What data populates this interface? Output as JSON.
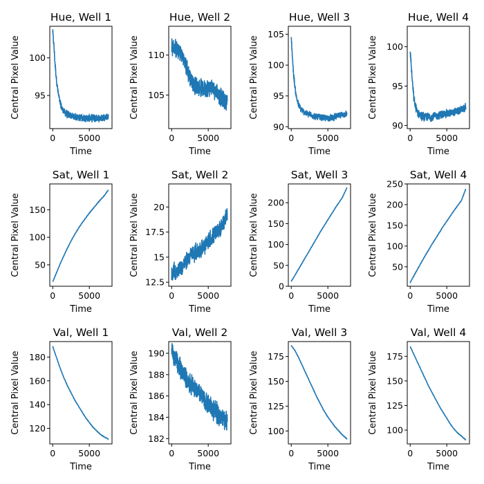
{
  "chart_data": [
    {
      "type": "line",
      "title": "Hue, Well 1",
      "xlabel": "Time",
      "ylabel": "Central Pixel Value",
      "xlim": [
        -400,
        8100
      ],
      "ylim": [
        90.6,
        104.2
      ],
      "xticks": [
        0,
        5000
      ],
      "yticks": [
        95,
        100
      ],
      "color": "#1f77b4",
      "noise": 0.55,
      "series": [
        {
          "x": [
            0,
            150,
            300,
            500,
            700,
            1000,
            1300,
            1600,
            2000,
            2500,
            3000,
            3500,
            4000,
            4500,
            5000,
            5500,
            6000,
            6500,
            7000,
            7600
          ],
          "y": [
            103.5,
            101.8,
            99.5,
            97.2,
            95.6,
            94.0,
            93.2,
            92.8,
            92.5,
            92.3,
            92.2,
            92.1,
            92.0,
            92.0,
            92.0,
            92.0,
            92.0,
            92.0,
            92.1,
            92.2
          ]
        }
      ]
    },
    {
      "type": "line",
      "title": "Hue, Well 2",
      "xlabel": "Time",
      "ylabel": "Central Pixel Value",
      "xlim": [
        -400,
        8100
      ],
      "ylim": [
        100.8,
        113.6
      ],
      "xticks": [
        0,
        5000
      ],
      "yticks": [
        105,
        110
      ],
      "color": "#1f77b4",
      "noise": 1.3,
      "series": [
        {
          "x": [
            0,
            500,
            1000,
            1500,
            2000,
            2500,
            3000,
            3500,
            4000,
            4500,
            5000,
            5500,
            6000,
            6500,
            7000,
            7600
          ],
          "y": [
            111.0,
            110.8,
            110.5,
            109.8,
            108.5,
            107.2,
            106.4,
            106.0,
            105.9,
            105.8,
            105.9,
            105.9,
            105.6,
            105.0,
            104.4,
            104.0
          ]
        }
      ]
    },
    {
      "type": "line",
      "title": "Hue, Well 3",
      "xlabel": "Time",
      "ylabel": "Central Pixel Value",
      "xlim": [
        -400,
        8100
      ],
      "ylim": [
        89.7,
        106.3
      ],
      "xticks": [
        0,
        5000
      ],
      "yticks": [
        90,
        95,
        100,
        105
      ],
      "color": "#1f77b4",
      "noise": 0.6,
      "series": [
        {
          "x": [
            0,
            150,
            300,
            500,
            700,
            1000,
            1300,
            1600,
            2000,
            2500,
            3000,
            3500,
            4000,
            4500,
            5000,
            5500,
            6000,
            6500,
            7000,
            7600
          ],
          "y": [
            104.5,
            101.5,
            98.8,
            96.5,
            94.8,
            93.5,
            92.9,
            92.5,
            92.2,
            92.0,
            91.8,
            91.6,
            91.5,
            91.4,
            91.4,
            91.5,
            91.6,
            91.8,
            92.0,
            92.1
          ]
        }
      ]
    },
    {
      "type": "line",
      "title": "Hue, Well 4",
      "xlabel": "Time",
      "ylabel": "Central Pixel Value",
      "xlim": [
        -400,
        8100
      ],
      "ylim": [
        89.6,
        102.6
      ],
      "xticks": [
        0,
        5000
      ],
      "yticks": [
        90,
        95,
        100
      ],
      "color": "#1f77b4",
      "noise": 0.6,
      "series": [
        {
          "x": [
            0,
            150,
            300,
            500,
            700,
            1000,
            1300,
            1600,
            2000,
            2500,
            3000,
            3500,
            4000,
            4500,
            5000,
            5500,
            6000,
            6500,
            7000,
            7600
          ],
          "y": [
            99.5,
            97.5,
            95.5,
            93.5,
            92.4,
            91.7,
            91.4,
            91.2,
            91.1,
            91.1,
            91.1,
            91.2,
            91.3,
            91.4,
            91.5,
            91.6,
            91.7,
            91.8,
            92.0,
            92.3
          ]
        }
      ]
    },
    {
      "type": "line",
      "title": "Sat, Well 1",
      "xlabel": "Time",
      "ylabel": "Central Pixel Value",
      "xlim": [
        -400,
        8100
      ],
      "ylim": [
        11,
        197
      ],
      "xticks": [
        0,
        5000
      ],
      "yticks": [
        50,
        100,
        150
      ],
      "color": "#1f77b4",
      "noise": 0.8,
      "series": [
        {
          "x": [
            0,
            500,
            1000,
            1500,
            2000,
            2500,
            3000,
            3500,
            4000,
            4500,
            5000,
            5500,
            6000,
            6500,
            7000,
            7600
          ],
          "y": [
            19,
            35,
            51,
            66,
            80,
            93,
            105,
            116,
            126,
            135,
            144,
            152,
            160,
            168,
            175,
            186
          ]
        }
      ]
    },
    {
      "type": "line",
      "title": "Sat, Well 2",
      "xlabel": "Time",
      "ylabel": "Central Pixel Value",
      "xlim": [
        -400,
        8100
      ],
      "ylim": [
        12.1,
        22.3
      ],
      "xticks": [
        0,
        5000
      ],
      "yticks": [
        12.5,
        15.0,
        17.5,
        20.0
      ],
      "color": "#1f77b4",
      "noise": 1.0,
      "series": [
        {
          "x": [
            0,
            500,
            1000,
            1500,
            2000,
            2500,
            3000,
            3500,
            4000,
            4500,
            5000,
            5500,
            6000,
            6500,
            7000,
            7600
          ],
          "y": [
            13.5,
            13.6,
            13.8,
            14.1,
            14.6,
            15.1,
            15.4,
            15.6,
            15.8,
            16.1,
            16.5,
            17.0,
            17.4,
            17.8,
            18.3,
            19.3
          ]
        }
      ]
    },
    {
      "type": "line",
      "title": "Sat, Well 3",
      "xlabel": "Time",
      "ylabel": "Central Pixel Value",
      "xlim": [
        -400,
        8100
      ],
      "ylim": [
        0,
        245
      ],
      "xticks": [
        0,
        5000
      ],
      "yticks": [
        0,
        50,
        100,
        150,
        200
      ],
      "color": "#1f77b4",
      "noise": 0.9,
      "series": [
        {
          "x": [
            0,
            500,
            1000,
            1500,
            2000,
            2500,
            3000,
            3500,
            4000,
            4500,
            5000,
            5500,
            6000,
            6500,
            7000,
            7600
          ],
          "y": [
            12,
            26,
            41,
            56,
            71,
            86,
            101,
            116,
            131,
            145,
            159,
            173,
            187,
            200,
            213,
            236
          ]
        }
      ]
    },
    {
      "type": "line",
      "title": "Sat, Well 4",
      "xlabel": "Time",
      "ylabel": "Central Pixel Value",
      "xlim": [
        -400,
        8100
      ],
      "ylim": [
        3,
        250
      ],
      "xticks": [
        0,
        5000
      ],
      "yticks": [
        50,
        100,
        150,
        200,
        250
      ],
      "color": "#1f77b4",
      "noise": 1.0,
      "series": [
        {
          "x": [
            0,
            500,
            1000,
            1500,
            2000,
            2500,
            3000,
            3500,
            4000,
            4500,
            5000,
            5500,
            6000,
            6500,
            7000,
            7600
          ],
          "y": [
            12,
            28,
            44,
            60,
            75,
            90,
            105,
            119,
            133,
            147,
            160,
            173,
            186,
            198,
            210,
            238
          ]
        }
      ]
    },
    {
      "type": "line",
      "title": "Val, Well 1",
      "xlabel": "Time",
      "ylabel": "Central Pixel Value",
      "xlim": [
        -400,
        8100
      ],
      "ylim": [
        107,
        193
      ],
      "xticks": [
        0,
        5000
      ],
      "yticks": [
        120,
        140,
        160,
        180
      ],
      "color": "#1f77b4",
      "noise": 0.35,
      "series": [
        {
          "x": [
            0,
            500,
            1000,
            1500,
            2000,
            2500,
            3000,
            3500,
            4000,
            4500,
            5000,
            5500,
            6000,
            6500,
            7000,
            7600
          ],
          "y": [
            189,
            180,
            171,
            163,
            156,
            150,
            144,
            139,
            134,
            129,
            125,
            121,
            118,
            115,
            113,
            111
          ]
        }
      ]
    },
    {
      "type": "line",
      "title": "Val, Well 2",
      "xlabel": "Time",
      "ylabel": "Central Pixel Value",
      "xlim": [
        -400,
        8100
      ],
      "ylim": [
        181.5,
        191.1
      ],
      "xticks": [
        0,
        5000
      ],
      "yticks": [
        182,
        184,
        186,
        188,
        190
      ],
      "color": "#1f77b4",
      "noise": 1.1,
      "series": [
        {
          "x": [
            0,
            500,
            1000,
            1500,
            2000,
            2500,
            3000,
            3500,
            4000,
            4500,
            5000,
            5500,
            6000,
            6500,
            7000,
            7600
          ],
          "y": [
            190.0,
            189.4,
            188.8,
            188.2,
            187.7,
            187.2,
            186.8,
            186.4,
            186.0,
            185.6,
            185.2,
            184.8,
            184.5,
            184.2,
            183.9,
            183.6
          ]
        }
      ]
    },
    {
      "type": "line",
      "title": "Val, Well 3",
      "xlabel": "Time",
      "ylabel": "Central Pixel Value",
      "xlim": [
        -400,
        8100
      ],
      "ylim": [
        87,
        190
      ],
      "xticks": [
        0,
        5000
      ],
      "yticks": [
        100,
        125,
        150,
        175
      ],
      "color": "#1f77b4",
      "noise": 0.4,
      "series": [
        {
          "x": [
            0,
            500,
            1000,
            1500,
            2000,
            2500,
            3000,
            3500,
            4000,
            4500,
            5000,
            5500,
            6000,
            6500,
            7000,
            7600
          ],
          "y": [
            186,
            181,
            174,
            166,
            158,
            150,
            142,
            134,
            127,
            120,
            114,
            109,
            104,
            100,
            96,
            92
          ]
        }
      ]
    },
    {
      "type": "line",
      "title": "Val, Well 4",
      "xlabel": "Time",
      "ylabel": "Central Pixel Value",
      "xlim": [
        -400,
        8100
      ],
      "ylim": [
        86,
        190
      ],
      "xticks": [
        0,
        5000
      ],
      "yticks": [
        100,
        125,
        150,
        175
      ],
      "color": "#1f77b4",
      "noise": 0.4,
      "series": [
        {
          "x": [
            0,
            500,
            1000,
            1500,
            2000,
            2500,
            3000,
            3500,
            4000,
            4500,
            5000,
            5500,
            6000,
            6500,
            7000,
            7600
          ],
          "y": [
            185,
            177,
            169,
            161,
            153,
            145,
            138,
            131,
            124,
            118,
            112,
            106,
            101,
            97,
            94,
            90
          ]
        }
      ]
    }
  ]
}
